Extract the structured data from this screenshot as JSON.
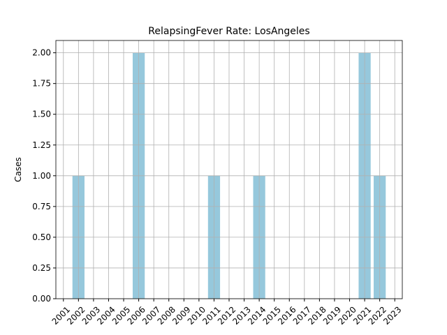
{
  "chart_data": {
    "type": "bar",
    "title": "RelapsingFever Rate: LosAngeles",
    "ylabel": "Cases",
    "categories": [
      "2001",
      "2002",
      "2003",
      "2004",
      "2005",
      "2006",
      "2007",
      "2008",
      "2009",
      "2010",
      "2011",
      "2012",
      "2013",
      "2014",
      "2015",
      "2016",
      "2017",
      "2018",
      "2019",
      "2020",
      "2021",
      "2022",
      "2023"
    ],
    "values": [
      0,
      1,
      0,
      0,
      0,
      2,
      0,
      0,
      0,
      0,
      1,
      0,
      0,
      1,
      0,
      0,
      0,
      0,
      0,
      0,
      2,
      1,
      0
    ],
    "color": "#96c8dc",
    "ylim": [
      0,
      2.1
    ],
    "yticks": [
      {
        "value": 0,
        "label": "0.00"
      },
      {
        "value": 0.25,
        "label": "0.25"
      },
      {
        "value": 0.5,
        "label": "0.50"
      },
      {
        "value": 0.75,
        "label": "0.75"
      },
      {
        "value": 1,
        "label": "1.00"
      },
      {
        "value": 1.25,
        "label": "1.25"
      },
      {
        "value": 1.5,
        "label": "1.50"
      },
      {
        "value": 1.75,
        "label": "1.75"
      },
      {
        "value": 2,
        "label": "2.00"
      }
    ],
    "grid": true
  }
}
